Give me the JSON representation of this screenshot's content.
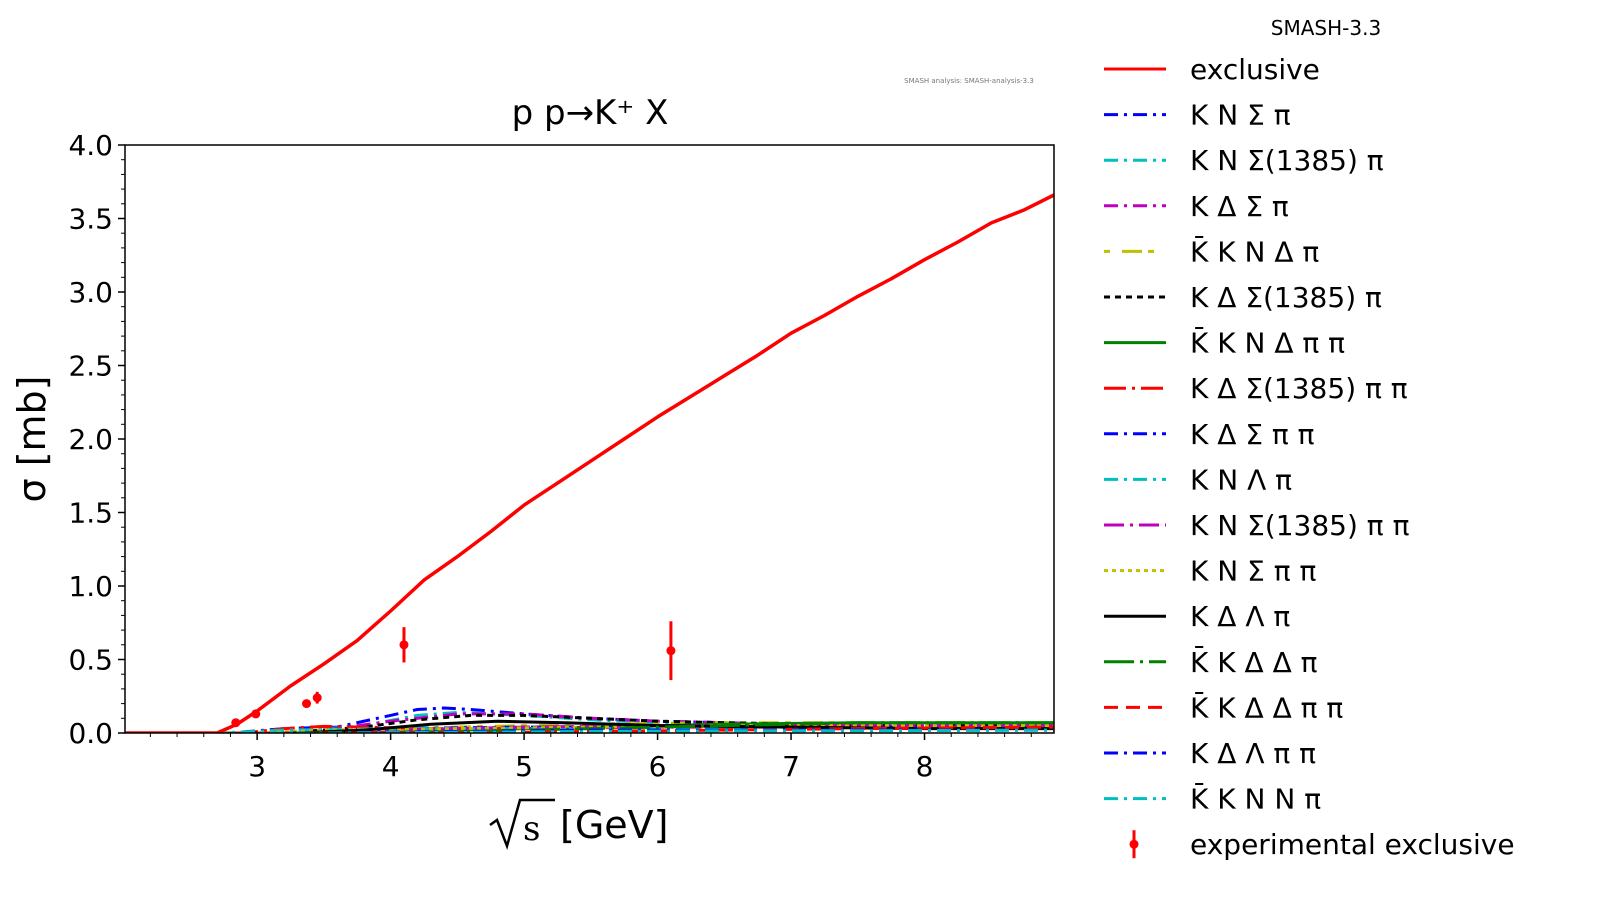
{
  "chart_data": {
    "type": "line",
    "title": "p p→K⁺ X",
    "xlabel": "[GeV]",
    "xlabel_sqrt": "s",
    "ylabel": "σ [mb]",
    "watermark": "SMASH analysis: SMASH-analysis-3.3",
    "legend_title": "SMASH-3.3",
    "legend_placement": "outside-right",
    "xlim": [
      2.01,
      8.97
    ],
    "ylim": [
      0,
      4.0
    ],
    "xticks": [
      3,
      4,
      5,
      6,
      7,
      8
    ],
    "xtick_labels": [
      "3",
      "4",
      "5",
      "6",
      "7",
      "8"
    ],
    "yticks": [
      0,
      0.5,
      1.0,
      1.5,
      2.0,
      2.5,
      3.0,
      3.5,
      4.0
    ],
    "ytick_labels": [
      "0.0",
      "0.5",
      "1.0",
      "1.5",
      "2.0",
      "2.5",
      "3.0",
      "3.5",
      "4.0"
    ],
    "series": [
      {
        "name": "exclusive",
        "color": "#ff0000",
        "dash": "",
        "width": 3.5,
        "x": [
          2.01,
          2.7,
          2.85,
          3.0,
          3.25,
          3.5,
          3.75,
          4.0,
          4.25,
          4.5,
          4.75,
          5.0,
          5.25,
          5.5,
          5.75,
          6.0,
          6.25,
          6.5,
          6.75,
          7.0,
          7.25,
          7.5,
          7.75,
          8.0,
          8.25,
          8.5,
          8.75,
          8.97
        ],
        "y": [
          0,
          0,
          0.06,
          0.15,
          0.32,
          0.47,
          0.63,
          0.83,
          1.04,
          1.2,
          1.37,
          1.55,
          1.7,
          1.85,
          2.0,
          2.15,
          2.29,
          2.43,
          2.57,
          2.72,
          2.84,
          2.97,
          3.09,
          3.22,
          3.34,
          3.47,
          3.56,
          3.66
        ]
      },
      {
        "name": "K N Σ π",
        "color": "#0000ff",
        "dash": "14 6 3 6",
        "width": 3,
        "x": [
          2.01,
          2.8,
          3.2,
          3.6,
          3.9,
          4.2,
          4.4,
          4.6,
          5.0,
          5.5,
          6.0,
          7.0,
          8.0,
          8.97
        ],
        "y": [
          0,
          0,
          0.03,
          0.04,
          0.1,
          0.16,
          0.17,
          0.16,
          0.13,
          0.1,
          0.08,
          0.06,
          0.05,
          0.04
        ]
      },
      {
        "name": "K N Σ(1385) π",
        "color": "#00bfbf",
        "dash": "14 6 3 6",
        "width": 3,
        "x": [
          2.01,
          2.9,
          3.4,
          3.8,
          4.2,
          4.5,
          5.0,
          5.5,
          6.0,
          7.0,
          8.0,
          8.97
        ],
        "y": [
          0,
          0,
          0.02,
          0.05,
          0.12,
          0.14,
          0.12,
          0.09,
          0.07,
          0.05,
          0.04,
          0.04
        ]
      },
      {
        "name": "K Δ Σ π",
        "color": "#bf00bf",
        "dash": "14 6 3 6",
        "width": 3,
        "x": [
          2.01,
          3.0,
          3.6,
          4.0,
          4.5,
          5.0,
          5.5,
          6.0,
          7.0,
          8.0,
          8.97
        ],
        "y": [
          0,
          0,
          0.03,
          0.08,
          0.13,
          0.13,
          0.1,
          0.08,
          0.06,
          0.05,
          0.05
        ]
      },
      {
        "name": "K̄ K N Δ π",
        "color": "#bfbf00",
        "dash": "6 12 20 6",
        "width": 3,
        "x": [
          2.01,
          3.3,
          3.8,
          4.5,
          5.5,
          6.5,
          7.5,
          8.97
        ],
        "y": [
          0,
          0,
          0.02,
          0.04,
          0.06,
          0.07,
          0.07,
          0.06
        ]
      },
      {
        "name": "K Δ Σ(1385) π",
        "color": "#000000",
        "dash": "6 5",
        "width": 3,
        "x": [
          2.01,
          3.2,
          3.8,
          4.2,
          4.6,
          5.0,
          5.5,
          6.0,
          7.0,
          8.0,
          8.97
        ],
        "y": [
          0,
          0,
          0.04,
          0.09,
          0.12,
          0.12,
          0.1,
          0.08,
          0.06,
          0.05,
          0.05
        ]
      },
      {
        "name": "K̄ K N Δ π π",
        "color": "#008000",
        "dash": "",
        "width": 3,
        "x": [
          2.01,
          3.8,
          4.5,
          5.5,
          6.5,
          7.5,
          8.97
        ],
        "y": [
          0,
          0,
          0.02,
          0.04,
          0.06,
          0.07,
          0.07
        ]
      },
      {
        "name": "K Δ Σ(1385) π π",
        "color": "#ff0000",
        "dash": "22 6 3 6",
        "width": 3,
        "x": [
          2.01,
          2.9,
          3.2,
          3.5,
          3.8,
          4.2,
          5.0,
          6.0,
          7.0,
          8.0,
          8.97
        ],
        "y": [
          0,
          0,
          0.03,
          0.045,
          0.04,
          0.03,
          0.03,
          0.04,
          0.04,
          0.04,
          0.04
        ]
      },
      {
        "name": "K Δ Σ π π",
        "color": "#0000ff",
        "dash": "14 6 3 6",
        "width": 3,
        "x": [
          2.01,
          3.0,
          3.5,
          4.0,
          5.0,
          6.0,
          7.0,
          8.0,
          8.97
        ],
        "y": [
          0,
          0,
          0.02,
          0.03,
          0.04,
          0.04,
          0.04,
          0.04,
          0.04
        ]
      },
      {
        "name": "K N Λ π",
        "color": "#00bfbf",
        "dash": "14 6 3 6",
        "width": 3,
        "x": [
          2.01,
          2.7,
          3.2,
          4.0,
          5.0,
          6.0,
          7.0,
          8.0,
          8.97
        ],
        "y": [
          0,
          0,
          0.02,
          0.03,
          0.03,
          0.03,
          0.03,
          0.03,
          0.03
        ]
      },
      {
        "name": "K N Σ(1385) π π",
        "color": "#bf00bf",
        "dash": "20 6 3 6",
        "width": 3,
        "x": [
          2.01,
          3.3,
          4.0,
          5.0,
          6.0,
          7.0,
          8.0,
          8.97
        ],
        "y": [
          0,
          0,
          0.02,
          0.04,
          0.05,
          0.05,
          0.05,
          0.05
        ]
      },
      {
        "name": "K N Σ π π",
        "color": "#bfbf00",
        "dash": "4 4",
        "width": 3,
        "x": [
          2.01,
          3.0,
          3.5,
          4.5,
          5.5,
          6.5,
          7.5,
          8.97
        ],
        "y": [
          0,
          0,
          0.02,
          0.03,
          0.04,
          0.05,
          0.05,
          0.05
        ]
      },
      {
        "name": "K Δ Λ π",
        "color": "#000000",
        "dash": "",
        "width": 3,
        "x": [
          2.01,
          3.3,
          3.8,
          4.3,
          4.8,
          5.3,
          6.0,
          7.0,
          8.0,
          8.97
        ],
        "y": [
          0,
          0,
          0.02,
          0.06,
          0.08,
          0.07,
          0.05,
          0.04,
          0.03,
          0.03
        ]
      },
      {
        "name": "K̄ K Δ Δ π",
        "color": "#008000",
        "dash": "30 6 3 6",
        "width": 3,
        "x": [
          2.01,
          4.0,
          5.0,
          6.0,
          7.0,
          7.5,
          8.0,
          8.97
        ],
        "y": [
          0,
          0,
          0.02,
          0.04,
          0.06,
          0.07,
          0.07,
          0.07
        ]
      },
      {
        "name": "K̄ K Δ Δ π π",
        "color": "#ff0000",
        "dash": "14 8",
        "width": 3,
        "x": [
          2.01,
          4.5,
          5.5,
          6.5,
          7.5,
          8.97
        ],
        "y": [
          0,
          0,
          0.01,
          0.02,
          0.03,
          0.04
        ]
      },
      {
        "name": "K Δ Λ π π",
        "color": "#0000ff",
        "dash": "14 6 3 6",
        "width": 3,
        "x": [
          2.01,
          3.5,
          4.5,
          5.5,
          6.5,
          7.5,
          8.97
        ],
        "y": [
          0,
          0,
          0.01,
          0.02,
          0.02,
          0.02,
          0.02
        ]
      },
      {
        "name": "K̄ K N N π",
        "color": "#00bfbf",
        "dash": "14 6 3 6",
        "width": 3,
        "x": [
          2.01,
          3.5,
          4.5,
          5.5,
          6.5,
          7.5,
          8.97
        ],
        "y": [
          0,
          0,
          0.005,
          0.01,
          0.015,
          0.015,
          0.02
        ]
      }
    ],
    "errorbar_series": {
      "name": "experimental exclusive",
      "color": "#ff0000",
      "x": [
        2.84,
        2.99,
        3.37,
        3.45,
        4.1,
        6.1
      ],
      "y": [
        0.07,
        0.13,
        0.2,
        0.24,
        0.6,
        0.56
      ],
      "yerr": [
        0.01,
        0.02,
        0.02,
        0.04,
        0.12,
        0.2
      ]
    }
  }
}
